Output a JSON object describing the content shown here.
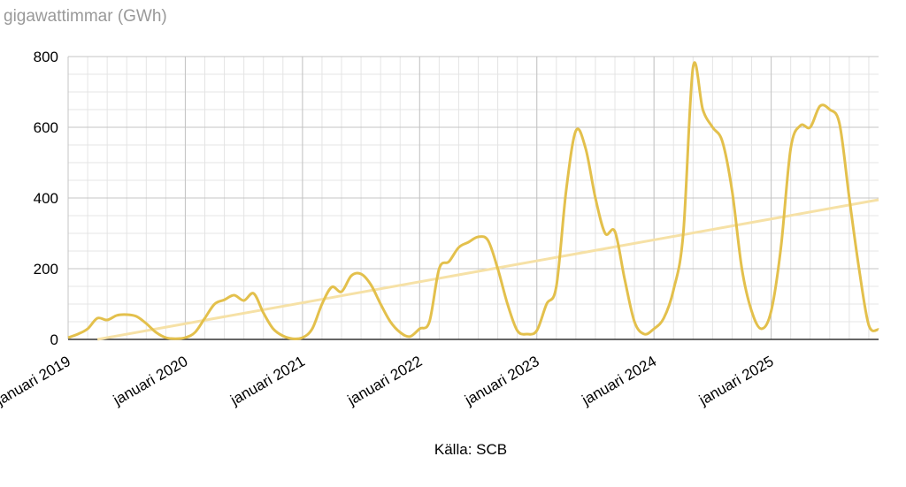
{
  "chart_data": {
    "type": "line",
    "y_label": "gigawattimmar (GWh)",
    "source": "Källa: SCB",
    "x": [
      "2019-01",
      "2019-02",
      "2019-03",
      "2019-04",
      "2019-05",
      "2019-06",
      "2019-07",
      "2019-08",
      "2019-09",
      "2019-10",
      "2019-11",
      "2019-12",
      "2020-01",
      "2020-02",
      "2020-03",
      "2020-04",
      "2020-05",
      "2020-06",
      "2020-07",
      "2020-08",
      "2020-09",
      "2020-10",
      "2020-11",
      "2020-12",
      "2021-01",
      "2021-02",
      "2021-03",
      "2021-04",
      "2021-05",
      "2021-06",
      "2021-07",
      "2021-08",
      "2021-09",
      "2021-10",
      "2021-11",
      "2021-12",
      "2022-01",
      "2022-02",
      "2022-03",
      "2022-04",
      "2022-05",
      "2022-06",
      "2022-07",
      "2022-08",
      "2022-09",
      "2022-10",
      "2022-11",
      "2022-12",
      "2023-01",
      "2023-02",
      "2023-03",
      "2023-04",
      "2023-05",
      "2023-06",
      "2023-07",
      "2023-08",
      "2023-09",
      "2023-10",
      "2023-11",
      "2023-12",
      "2024-01",
      "2024-02",
      "2024-03",
      "2024-04",
      "2024-05",
      "2024-06",
      "2024-07",
      "2024-08",
      "2024-09",
      "2024-10",
      "2024-11",
      "2024-12",
      "2025-01",
      "2025-02",
      "2025-03",
      "2025-04",
      "2025-05",
      "2025-06",
      "2025-07",
      "2025-08",
      "2025-09",
      "2025-10",
      "2025-11",
      "2025-12"
    ],
    "series": [
      {
        "color": "#e3c04c",
        "values": [
          5,
          15,
          30,
          60,
          55,
          68,
          70,
          65,
          45,
          20,
          5,
          2,
          5,
          20,
          60,
          100,
          112,
          125,
          110,
          130,
          75,
          30,
          10,
          2,
          5,
          30,
          100,
          148,
          135,
          180,
          185,
          155,
          100,
          50,
          20,
          8,
          30,
          50,
          200,
          220,
          260,
          275,
          290,
          280,
          200,
          100,
          25,
          15,
          25,
          100,
          150,
          420,
          590,
          540,
          400,
          300,
          305,
          170,
          50,
          15,
          30,
          60,
          140,
          300,
          770,
          650,
          600,
          560,
          420,
          200,
          80,
          30,
          80,
          260,
          540,
          605,
          600,
          660,
          650,
          610,
          400,
          200,
          40,
          28
        ]
      }
    ],
    "trendline": {
      "color": "#f6e1a6",
      "x": [
        "2019-04",
        "2025-12"
      ],
      "values": [
        0,
        395
      ]
    },
    "ylim": [
      0,
      800
    ],
    "yticks": [
      0,
      200,
      400,
      600,
      800
    ],
    "y_minor_step": 50,
    "x_minor_step_months": 2,
    "xticks": [
      {
        "value": "2019-01",
        "label": "januari 2019"
      },
      {
        "value": "2020-01",
        "label": "januari 2020"
      },
      {
        "value": "2021-01",
        "label": "januari 2021"
      },
      {
        "value": "2022-01",
        "label": "januari 2022"
      },
      {
        "value": "2023-01",
        "label": "januari 2023"
      },
      {
        "value": "2024-01",
        "label": "januari 2024"
      },
      {
        "value": "2025-01",
        "label": "januari 2025"
      }
    ],
    "grid": true
  }
}
